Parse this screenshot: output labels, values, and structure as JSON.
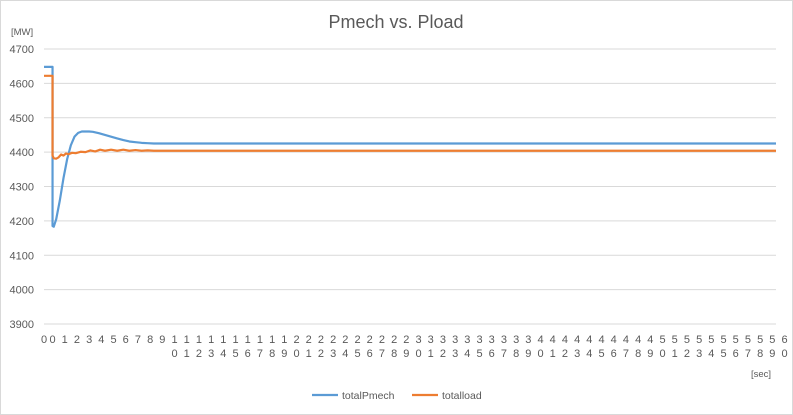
{
  "chart_data": {
    "type": "line",
    "title": "Pmech vs. Pload",
    "ylabel": "[MW]",
    "xlabel": "[sec]",
    "ylim": [
      3900,
      4700
    ],
    "yticks": [
      3900,
      4000,
      4100,
      4200,
      4300,
      4400,
      4500,
      4600,
      4700
    ],
    "xlim": [
      0,
      60
    ],
    "xtick_labels": [
      "0",
      "0",
      "1",
      "2",
      "3",
      "4",
      "5",
      "6",
      "7",
      "8",
      "9",
      "10",
      "11",
      "12",
      "13",
      "14",
      "15",
      "16",
      "17",
      "18",
      "19",
      "20",
      "21",
      "22",
      "23",
      "24",
      "25",
      "26",
      "27",
      "28",
      "29",
      "30",
      "31",
      "32",
      "33",
      "34",
      "35",
      "36",
      "37",
      "38",
      "39",
      "40",
      "41",
      "42",
      "43",
      "44",
      "45",
      "46",
      "47",
      "48",
      "49",
      "50",
      "51",
      "52",
      "53",
      "54",
      "55",
      "56",
      "57",
      "58",
      "59",
      "60"
    ],
    "grid": true,
    "legend_position": "bottom",
    "series": [
      {
        "name": "totalPmech",
        "color": "#5b9bd5",
        "x": [
          0,
          0.7,
          0.7,
          0.8,
          1.0,
          1.3,
          1.6,
          1.9,
          2.2,
          2.5,
          2.8,
          3.1,
          3.4,
          3.7,
          4.0,
          4.5,
          5.0,
          5.5,
          6.0,
          6.5,
          7.0,
          7.5,
          8.0,
          8.5,
          9.0,
          60
        ],
        "y": [
          4648,
          4648,
          4185,
          4183,
          4205,
          4260,
          4325,
          4380,
          4420,
          4445,
          4456,
          4460,
          4460,
          4460,
          4459,
          4455,
          4450,
          4445,
          4440,
          4435,
          4431,
          4429,
          4427,
          4426,
          4425,
          4425
        ]
      },
      {
        "name": "totalload",
        "color": "#ed7d31",
        "x": [
          0,
          0.7,
          0.7,
          0.8,
          1.0,
          1.2,
          1.4,
          1.6,
          1.8,
          2.0,
          2.3,
          2.6,
          3.0,
          3.4,
          3.8,
          4.2,
          4.6,
          5.0,
          5.5,
          6.0,
          6.5,
          7.0,
          7.5,
          8.0,
          8.5,
          9.0,
          60
        ],
        "y": [
          4622,
          4622,
          4390,
          4382,
          4381,
          4385,
          4393,
          4390,
          4396,
          4394,
          4398,
          4397,
          4401,
          4400,
          4405,
          4402,
          4407,
          4404,
          4407,
          4404,
          4407,
          4404,
          4406,
          4404,
          4405,
          4404,
          4404
        ]
      }
    ]
  }
}
